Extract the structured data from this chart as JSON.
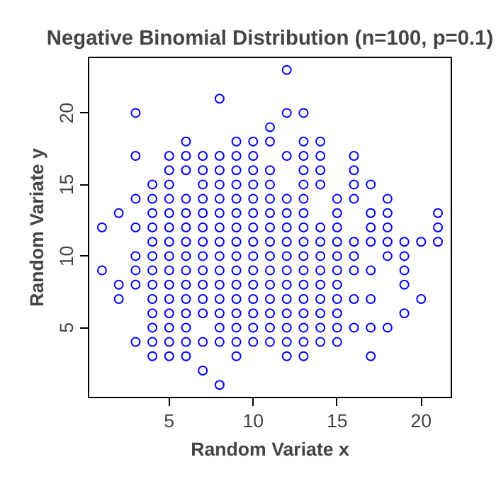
{
  "chart_data": {
    "type": "scatter",
    "title": "Negative Binomial Distribution (n=100, p=0.1)",
    "xlabel": "Random Variate x",
    "ylabel": "Random Variate y",
    "x": [
      1,
      1,
      2,
      2,
      2,
      3,
      3,
      3,
      3,
      3,
      3,
      3,
      3,
      4,
      4,
      4,
      4,
      4,
      4,
      4,
      4,
      4,
      4,
      4,
      4,
      4,
      5,
      5,
      5,
      5,
      5,
      5,
      5,
      5,
      5,
      5,
      5,
      5,
      5,
      5,
      5,
      6,
      6,
      6,
      6,
      6,
      6,
      6,
      6,
      6,
      6,
      6,
      6,
      6,
      6,
      6,
      7,
      7,
      7,
      7,
      7,
      7,
      7,
      7,
      7,
      7,
      7,
      7,
      7,
      7,
      8,
      8,
      8,
      8,
      8,
      8,
      8,
      8,
      8,
      8,
      8,
      8,
      8,
      8,
      8,
      8,
      9,
      9,
      9,
      9,
      9,
      9,
      9,
      9,
      9,
      9,
      9,
      9,
      9,
      9,
      9,
      9,
      10,
      10,
      10,
      10,
      10,
      10,
      10,
      10,
      10,
      10,
      10,
      10,
      10,
      10,
      10,
      11,
      11,
      11,
      11,
      11,
      11,
      11,
      11,
      11,
      11,
      11,
      11,
      11,
      11,
      11,
      12,
      12,
      12,
      12,
      12,
      12,
      12,
      12,
      12,
      12,
      12,
      12,
      12,
      12,
      12,
      13,
      13,
      13,
      13,
      13,
      13,
      13,
      13,
      13,
      13,
      13,
      13,
      13,
      13,
      13,
      13,
      13,
      14,
      14,
      14,
      14,
      14,
      14,
      14,
      14,
      14,
      14,
      14,
      14,
      14,
      15,
      15,
      15,
      15,
      15,
      15,
      15,
      15,
      15,
      15,
      15,
      16,
      16,
      16,
      16,
      16,
      16,
      16,
      16,
      16,
      17,
      17,
      17,
      17,
      17,
      17,
      17,
      17,
      18,
      18,
      18,
      18,
      18,
      18,
      19,
      19,
      19,
      19,
      19,
      20,
      20,
      21,
      21,
      21
    ],
    "values": [
      12,
      9,
      13,
      8,
      7,
      20,
      17,
      14,
      12,
      10,
      9,
      8,
      4,
      15,
      14,
      13,
      12,
      11,
      10,
      9,
      8,
      7,
      6,
      5,
      4,
      3,
      17,
      16,
      15,
      14,
      13,
      12,
      11,
      10,
      9,
      8,
      7,
      6,
      5,
      4,
      3,
      18,
      17,
      16,
      14,
      13,
      12,
      11,
      10,
      9,
      8,
      7,
      6,
      5,
      4,
      3,
      17,
      16,
      15,
      14,
      13,
      12,
      11,
      10,
      9,
      8,
      7,
      6,
      4,
      2,
      21,
      17,
      16,
      15,
      14,
      13,
      12,
      11,
      10,
      9,
      8,
      7,
      6,
      5,
      4,
      1,
      18,
      17,
      16,
      15,
      14,
      13,
      12,
      11,
      10,
      9,
      8,
      7,
      6,
      5,
      4,
      3,
      18,
      17,
      16,
      15,
      14,
      13,
      12,
      11,
      10,
      9,
      8,
      7,
      6,
      5,
      4,
      19,
      18,
      16,
      15,
      14,
      13,
      12,
      11,
      10,
      9,
      8,
      7,
      6,
      5,
      4,
      23,
      20,
      17,
      14,
      13,
      12,
      11,
      10,
      9,
      8,
      7,
      6,
      5,
      4,
      3,
      20,
      18,
      17,
      16,
      15,
      14,
      13,
      12,
      11,
      10,
      9,
      8,
      7,
      6,
      5,
      4,
      3,
      18,
      17,
      16,
      15,
      12,
      11,
      10,
      9,
      8,
      7,
      6,
      5,
      4,
      14,
      13,
      12,
      11,
      10,
      9,
      8,
      7,
      6,
      5,
      4,
      17,
      16,
      15,
      14,
      11,
      10,
      9,
      7,
      5,
      15,
      13,
      12,
      11,
      9,
      7,
      5,
      3,
      14,
      13,
      12,
      11,
      10,
      5,
      11,
      10,
      9,
      8,
      6,
      11,
      7,
      13,
      12,
      11
    ],
    "color": "#0000ff",
    "marker": "circle",
    "xlim": [
      0.2,
      21.8
    ],
    "ylim": [
      0.12,
      23.88
    ],
    "xticks": [
      5,
      10,
      15,
      20
    ],
    "yticks": [
      5,
      10,
      15,
      20
    ],
    "grid": false
  }
}
